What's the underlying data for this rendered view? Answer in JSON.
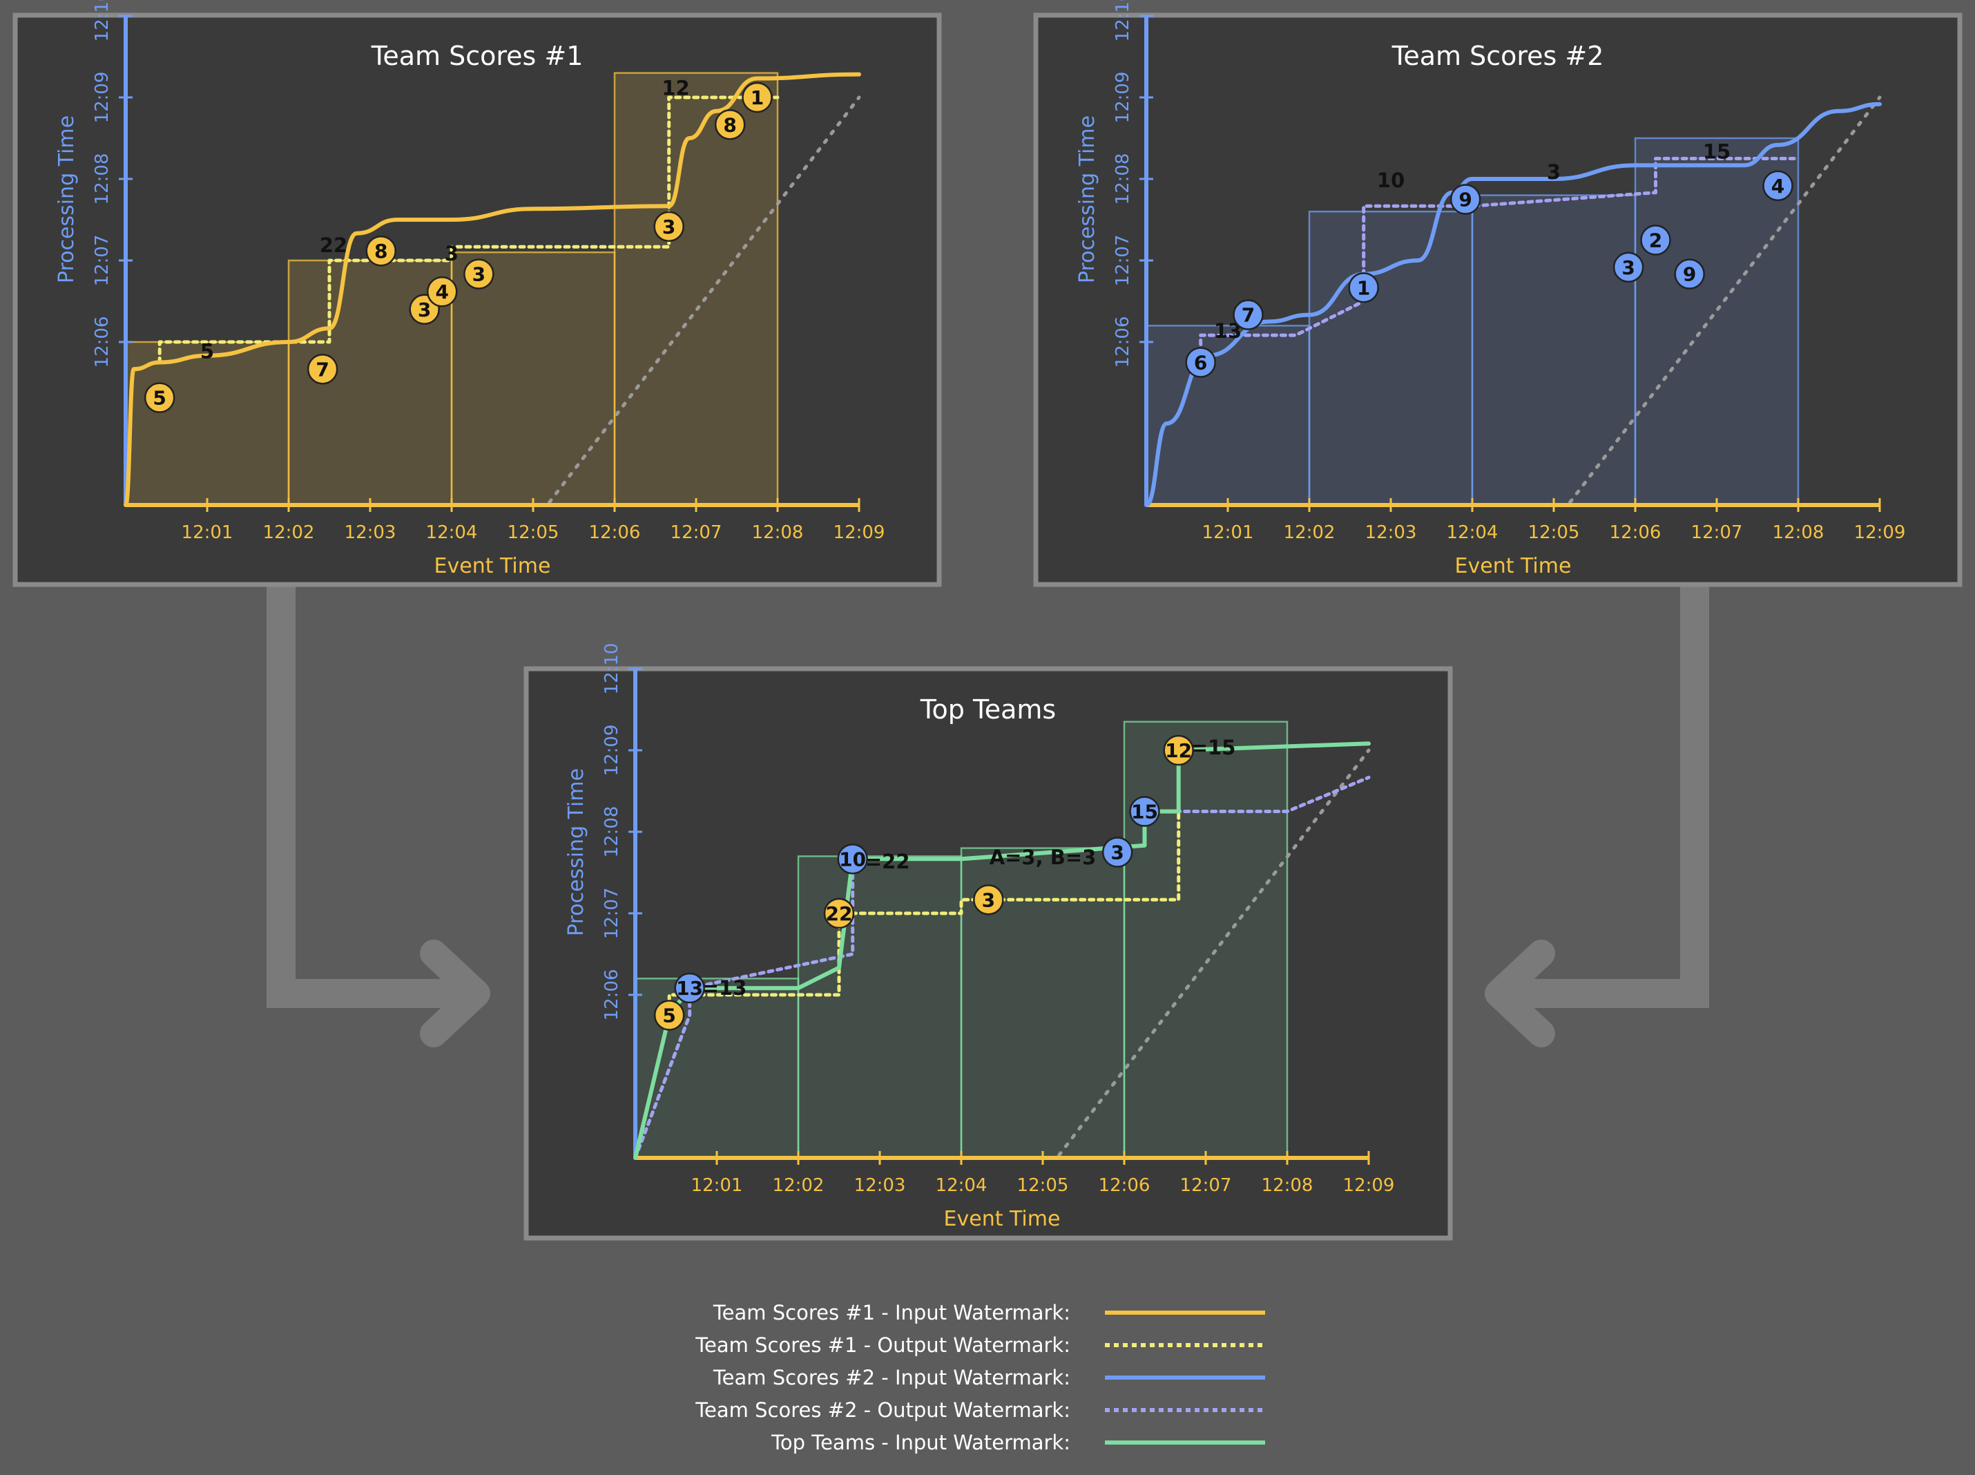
{
  "colors": {
    "page_bg": "#5c5c5c",
    "panel_bg": "#3a3a3a",
    "panel_border": "#8a8a8a",
    "connector": "#7a7a7a",
    "yellow": "#f5c242",
    "blue": "#6f9df5",
    "lavender": "#a3a3f2",
    "green": "#7fdca0",
    "pale_yellow": "#f2ec7a",
    "ideal_line": "#9a9a9a"
  },
  "axes": {
    "x_label": "Event Time",
    "y_label": "Processing Time",
    "x_ticks": [
      "12:01",
      "12:02",
      "12:03",
      "12:04",
      "12:05",
      "12:06",
      "12:07",
      "12:08",
      "12:09"
    ],
    "y_ticks": [
      "12:06",
      "12:07",
      "12:08",
      "12:09",
      "12:10"
    ]
  },
  "panels": [
    {
      "title": "Team Scores #1",
      "theme": "yellow",
      "windows": [
        {
          "x0": "12:00",
          "x1": "12:02",
          "y": "12:06",
          "label": "5"
        },
        {
          "x0": "12:02",
          "x1": "12:04",
          "y": "12:07",
          "label": "22"
        },
        {
          "x0": "12:04",
          "x1": "12:06",
          "y": "12:07",
          "label": "3"
        },
        {
          "x0": "12:06",
          "x1": "12:08",
          "y": "12:09",
          "label": "12"
        }
      ],
      "events": [
        {
          "v": "5",
          "x": "12:00:25",
          "y": "12:05:19"
        },
        {
          "v": "7",
          "x": "12:02:25",
          "y": "12:05:40"
        },
        {
          "v": "8",
          "x": "12:03:08",
          "y": "12:07:07"
        },
        {
          "v": "3",
          "x": "12:03:40",
          "y": "12:06:24"
        },
        {
          "v": "4",
          "x": "12:03:53",
          "y": "12:06:37"
        },
        {
          "v": "3",
          "x": "12:04:20",
          "y": "12:06:50"
        },
        {
          "v": "3",
          "x": "12:06:40",
          "y": "12:07:25"
        },
        {
          "v": "8",
          "x": "12:07:25",
          "y": "12:08:40"
        },
        {
          "v": "1",
          "x": "12:07:45",
          "y": "12:09:00"
        }
      ],
      "input_watermark": [
        [
          "12:00:00",
          "12:04:00"
        ],
        [
          "12:00:06",
          "12:05:40"
        ],
        [
          "12:00:25",
          "12:05:45"
        ],
        [
          "12:01:00",
          "12:05:50"
        ],
        [
          "12:02:00",
          "12:06:00"
        ],
        [
          "12:02:30",
          "12:06:10"
        ],
        [
          "12:02:50",
          "12:07:20"
        ],
        [
          "12:03:20",
          "12:07:30"
        ],
        [
          "12:04:00",
          "12:07:30"
        ],
        [
          "12:05:00",
          "12:07:38"
        ],
        [
          "12:06:40",
          "12:07:40"
        ],
        [
          "12:06:55",
          "12:08:30"
        ],
        [
          "12:07:15",
          "12:08:50"
        ],
        [
          "12:07:45",
          "12:09:14"
        ],
        [
          "12:09:00",
          "12:09:17"
        ]
      ],
      "output_watermark": [
        [
          "12:00:25",
          "12:05:45"
        ],
        [
          "12:00:25",
          "12:06:00"
        ],
        [
          "12:02:30",
          "12:06:00"
        ],
        [
          "12:02:30",
          "12:07:00"
        ],
        [
          "12:04:00",
          "12:07:00"
        ],
        [
          "12:04:00",
          "12:07:10"
        ],
        [
          "12:06:40",
          "12:07:10"
        ],
        [
          "12:06:40",
          "12:09:00"
        ],
        [
          "12:08:00",
          "12:09:00"
        ]
      ]
    },
    {
      "title": "Team Scores #2",
      "theme": "blue",
      "windows": [
        {
          "x0": "12:00",
          "x1": "12:02",
          "y": "12:06",
          "label": "13"
        },
        {
          "x0": "12:02",
          "x1": "12:04",
          "y": "12:08",
          "label": "10"
        },
        {
          "x0": "12:04",
          "x1": "12:06",
          "y": "12:08",
          "label": "3"
        },
        {
          "x0": "12:06",
          "x1": "12:08",
          "y": "12:08",
          "label": "15"
        }
      ],
      "events": [
        {
          "v": "6",
          "x": "12:00:40",
          "y": "12:05:45"
        },
        {
          "v": "7",
          "x": "12:01:15",
          "y": "12:06:20"
        },
        {
          "v": "1",
          "x": "12:02:40",
          "y": "12:06:40"
        },
        {
          "v": "9",
          "x": "12:03:55",
          "y": "12:07:45"
        },
        {
          "v": "2",
          "x": "12:06:15",
          "y": "12:07:15"
        },
        {
          "v": "3",
          "x": "12:05:55",
          "y": "12:06:55"
        },
        {
          "v": "9",
          "x": "12:06:40",
          "y": "12:06:50"
        },
        {
          "v": "4",
          "x": "12:07:45",
          "y": "12:07:55"
        }
      ],
      "input_watermark": [
        [
          "12:00:00",
          "12:04:00"
        ],
        [
          "12:00:15",
          "12:05:00"
        ],
        [
          "12:00:45",
          "12:05:50"
        ],
        [
          "12:01:30",
          "12:06:15"
        ],
        [
          "12:02:00",
          "12:06:20"
        ],
        [
          "12:02:40",
          "12:06:50"
        ],
        [
          "12:03:20",
          "12:07:00"
        ],
        [
          "12:03:45",
          "12:07:50"
        ],
        [
          "12:04:00",
          "12:08:00"
        ],
        [
          "12:05:00",
          "12:08:00"
        ],
        [
          "12:06:00",
          "12:08:10"
        ],
        [
          "12:07:20",
          "12:08:10"
        ],
        [
          "12:07:45",
          "12:08:25"
        ],
        [
          "12:08:30",
          "12:08:50"
        ],
        [
          "12:09:00",
          "12:08:55"
        ]
      ],
      "output_watermark": [
        [
          "12:00:40",
          "12:05:45"
        ],
        [
          "12:00:40",
          "12:06:05"
        ],
        [
          "12:01:50",
          "12:06:05"
        ],
        [
          "12:02:40",
          "12:06:30"
        ],
        [
          "12:02:40",
          "12:07:40"
        ],
        [
          "12:04:00",
          "12:07:40"
        ],
        [
          "12:06:15",
          "12:07:50"
        ],
        [
          "12:06:15",
          "12:08:15"
        ],
        [
          "12:08:00",
          "12:08:15"
        ]
      ]
    },
    {
      "title": "Top Teams",
      "theme": "green",
      "windows": [
        {
          "x0": "12:00",
          "x1": "12:02",
          "y": "12:06",
          "label": "B=13"
        },
        {
          "x0": "12:02",
          "x1": "12:04",
          "y": "12:08",
          "label": "A=22"
        },
        {
          "x0": "12:04",
          "x1": "12:06",
          "y": "12:08",
          "label": "A=3, B=3"
        },
        {
          "x0": "12:06",
          "x1": "12:08",
          "y": "12:09",
          "label": "B=15"
        }
      ],
      "events": [
        {
          "v": "5",
          "x": "12:00:25",
          "y": "12:05:45",
          "c": "yellow"
        },
        {
          "v": "13",
          "x": "12:00:40",
          "y": "12:06:05",
          "c": "blue"
        },
        {
          "v": "22",
          "x": "12:02:30",
          "y": "12:07:00",
          "c": "yellow"
        },
        {
          "v": "10",
          "x": "12:02:40",
          "y": "12:07:40",
          "c": "blue"
        },
        {
          "v": "3",
          "x": "12:04:20",
          "y": "12:07:10",
          "c": "yellow"
        },
        {
          "v": "3",
          "x": "12:05:55",
          "y": "12:07:45",
          "c": "blue"
        },
        {
          "v": "15",
          "x": "12:06:15",
          "y": "12:08:15",
          "c": "blue"
        },
        {
          "v": "12",
          "x": "12:06:40",
          "y": "12:09:00",
          "c": "yellow"
        }
      ],
      "out1_watermark": [
        [
          "12:00:00",
          "12:04:00"
        ],
        [
          "12:00:25",
          "12:05:45"
        ],
        [
          "12:00:25",
          "12:06:00"
        ],
        [
          "12:02:30",
          "12:06:00"
        ],
        [
          "12:02:30",
          "12:07:00"
        ],
        [
          "12:04:00",
          "12:07:00"
        ],
        [
          "12:04:00",
          "12:07:10"
        ],
        [
          "12:06:40",
          "12:07:10"
        ],
        [
          "12:06:40",
          "12:09:00"
        ],
        [
          "12:09:00",
          "12:09:05"
        ]
      ],
      "out2_watermark": [
        [
          "12:00:00",
          "12:04:00"
        ],
        [
          "12:00:40",
          "12:05:45"
        ],
        [
          "12:00:40",
          "12:06:05"
        ],
        [
          "12:02:40",
          "12:06:30"
        ],
        [
          "12:02:40",
          "12:07:40"
        ],
        [
          "12:04:00",
          "12:07:40"
        ],
        [
          "12:06:15",
          "12:07:50"
        ],
        [
          "12:06:15",
          "12:08:15"
        ],
        [
          "12:08:00",
          "12:08:15"
        ],
        [
          "12:09:00",
          "12:08:40"
        ]
      ],
      "input_watermark": [
        [
          "12:00:00",
          "12:04:00"
        ],
        [
          "12:00:25",
          "12:05:45"
        ],
        [
          "12:00:40",
          "12:06:05"
        ],
        [
          "12:02:00",
          "12:06:05"
        ],
        [
          "12:02:30",
          "12:06:20"
        ],
        [
          "12:02:40",
          "12:07:40"
        ],
        [
          "12:04:00",
          "12:07:40"
        ],
        [
          "12:06:15",
          "12:07:50"
        ],
        [
          "12:06:15",
          "12:08:15"
        ],
        [
          "12:06:40",
          "12:08:15"
        ],
        [
          "12:06:40",
          "12:09:00"
        ],
        [
          "12:09:00",
          "12:09:05"
        ]
      ]
    }
  ],
  "legend": [
    {
      "label": "Team Scores #1 - Input Watermark:",
      "color": "yellow",
      "dashed": false
    },
    {
      "label": "Team Scores #1 - Output Watermark:",
      "color": "pale_yellow",
      "dashed": true
    },
    {
      "label": "Team Scores #2 - Input Watermark:",
      "color": "blue",
      "dashed": false
    },
    {
      "label": "Team Scores #2 - Output Watermark:",
      "color": "lavender",
      "dashed": true
    },
    {
      "label": "Top Teams - Input Watermark:",
      "color": "green",
      "dashed": false
    }
  ]
}
